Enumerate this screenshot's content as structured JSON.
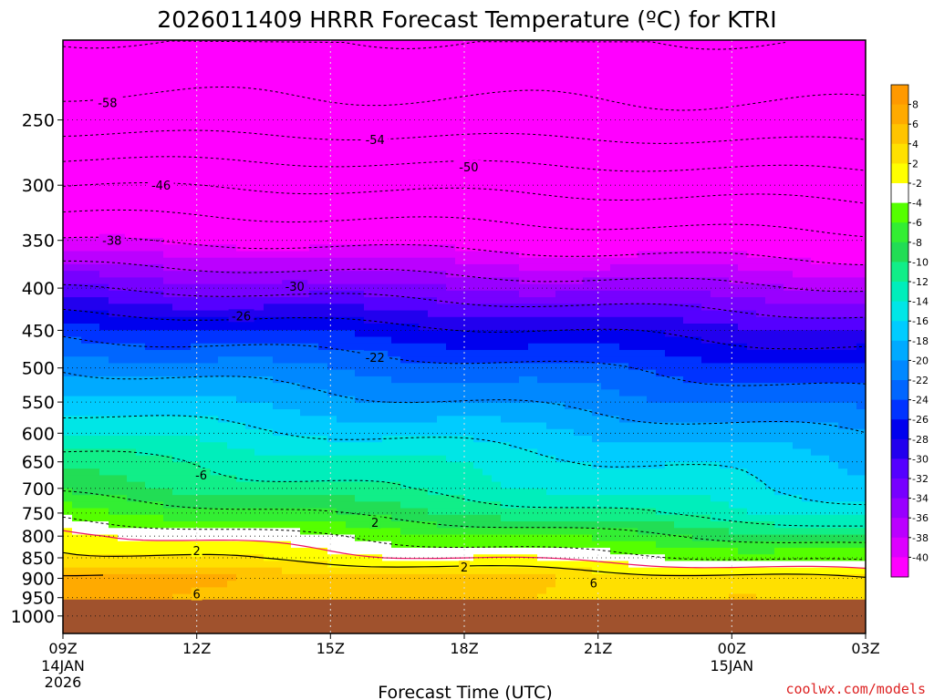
{
  "chart_data": {
    "type": "heatmap",
    "title": "2026011409 HRRR Forecast Temperature (ºC) for KTRI",
    "xlabel": "Forecast Time (UTC)",
    "ylabel": "",
    "x_ticks": [
      {
        "label": "09Z",
        "hour": 0
      },
      {
        "label": "12Z",
        "hour": 3
      },
      {
        "label": "15Z",
        "hour": 6
      },
      {
        "label": "18Z",
        "hour": 9
      },
      {
        "label": "21Z",
        "hour": 12
      },
      {
        "label": "00Z",
        "hour": 15
      },
      {
        "label": "03Z",
        "hour": 18
      }
    ],
    "x_date_labels": [
      {
        "hour": 0,
        "lines": [
          "14JAN",
          "2026"
        ]
      },
      {
        "hour": 15,
        "lines": [
          "15JAN"
        ]
      }
    ],
    "xlim": [
      0,
      18
    ],
    "y_ticks": [
      250,
      300,
      350,
      400,
      450,
      500,
      550,
      600,
      650,
      700,
      750,
      800,
      850,
      900,
      950,
      1000
    ],
    "ylim_hpa": [
      200,
      1050
    ],
    "yscale": "log",
    "ground_level_hpa": 955,
    "ground_color": "#a0522d",
    "colorbar": {
      "labels": [
        "8",
        "6",
        "4",
        "2",
        "-2",
        "-4",
        "-6",
        "-8",
        "-10",
        "-12",
        "-14",
        "-16",
        "-18",
        "-20",
        "-22",
        "-24",
        "-26",
        "-28",
        "-30",
        "-32",
        "-34",
        "-36",
        "-38",
        "-40"
      ],
      "colors": [
        "#ff9900",
        "#ffaa00",
        "#ffc400",
        "#ffe000",
        "#ffff00",
        "#ffffff",
        "#55ff00",
        "#33ee33",
        "#22dd55",
        "#11ee88",
        "#00eebb",
        "#00e6e6",
        "#00ccff",
        "#00aaff",
        "#0088ff",
        "#0066ff",
        "#0033ff",
        "#0000ee",
        "#2200ee",
        "#5500ff",
        "#7700ff",
        "#9900ff",
        "#bb00ff",
        "#dd00ff",
        "#ff00ff"
      ]
    },
    "temperature_profile": {
      "pressure_hpa": [
        950,
        900,
        850,
        800,
        750,
        700,
        650,
        600,
        550,
        500,
        450,
        400,
        350,
        300,
        250,
        200
      ],
      "temp_at_start_c": [
        6,
        7,
        3,
        1,
        -3,
        -7,
        -9,
        -12,
        -15,
        -18,
        -23,
        -30,
        -38,
        -46,
        -56,
        -62
      ],
      "temp_change_by_end_c": [
        -3,
        -5,
        -6,
        -9,
        -10,
        -8,
        -7,
        -6,
        -6,
        -6,
        -5,
        -4,
        -3,
        -2,
        -1,
        0
      ]
    },
    "contour_labels": [
      {
        "text": "-58",
        "hour": 1.0,
        "p": 238
      },
      {
        "text": "-54",
        "hour": 7.0,
        "p": 264
      },
      {
        "text": "-50",
        "hour": 9.1,
        "p": 285
      },
      {
        "text": "-46",
        "hour": 2.2,
        "p": 300
      },
      {
        "text": "-38",
        "hour": 1.1,
        "p": 350
      },
      {
        "text": "-30",
        "hour": 5.2,
        "p": 398
      },
      {
        "text": "-26",
        "hour": 4.0,
        "p": 432
      },
      {
        "text": "-22",
        "hour": 7.0,
        "p": 485
      },
      {
        "text": "-6",
        "hour": 3.1,
        "p": 674
      },
      {
        "text": "2",
        "hour": 7.0,
        "p": 770
      },
      {
        "text": "2",
        "hour": 3.0,
        "p": 833
      },
      {
        "text": "2",
        "hour": 9.0,
        "p": 872
      },
      {
        "text": "6",
        "hour": 11.9,
        "p": 911
      },
      {
        "text": "6",
        "hour": 3.0,
        "p": 940
      }
    ]
  },
  "footer": {
    "credit": "coolwx.com/models"
  }
}
